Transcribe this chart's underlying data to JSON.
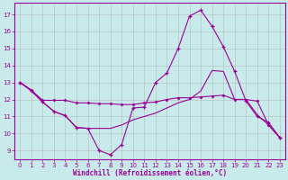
{
  "xlabel": "Windchill (Refroidissement éolien,°C)",
  "bg_color": "#c8eaea",
  "line_color": "#990099",
  "grid_color": "#b0b0b0",
  "xlim": [
    -0.5,
    23.5
  ],
  "ylim": [
    8.5,
    17.7
  ],
  "yticks": [
    9,
    10,
    11,
    12,
    13,
    14,
    15,
    16,
    17
  ],
  "xticks": [
    0,
    1,
    2,
    3,
    4,
    5,
    6,
    7,
    8,
    9,
    10,
    11,
    12,
    13,
    14,
    15,
    16,
    17,
    18,
    19,
    20,
    21,
    22,
    23
  ],
  "line1_x": [
    0,
    1,
    2,
    3,
    4,
    5,
    6,
    7,
    8,
    9,
    10,
    11,
    12,
    13,
    14,
    15,
    16,
    17,
    18,
    19,
    20,
    21,
    22,
    23
  ],
  "line1_y": [
    13.0,
    12.5,
    11.85,
    11.3,
    11.05,
    10.35,
    10.3,
    9.0,
    8.75,
    9.35,
    11.5,
    11.55,
    13.0,
    13.55,
    15.0,
    16.9,
    17.25,
    16.3,
    15.1,
    13.65,
    11.9,
    11.0,
    10.65,
    9.75
  ],
  "line2_x": [
    0,
    1,
    2,
    3,
    4,
    5,
    6,
    7,
    8,
    9,
    10,
    11,
    12,
    13,
    14,
    15,
    16,
    17,
    18,
    19,
    20,
    21,
    22,
    23
  ],
  "line2_y": [
    13.0,
    12.55,
    11.95,
    11.95,
    11.95,
    11.8,
    11.8,
    11.75,
    11.75,
    11.7,
    11.7,
    11.8,
    11.85,
    12.0,
    12.1,
    12.1,
    12.15,
    12.2,
    12.25,
    12.0,
    12.0,
    11.9,
    10.5,
    9.75
  ],
  "line3_x": [
    0,
    1,
    2,
    3,
    4,
    5,
    6,
    7,
    8,
    9,
    10,
    11,
    12,
    13,
    14,
    15,
    16,
    17,
    18,
    19,
    20,
    21,
    22,
    23
  ],
  "line3_y": [
    13.0,
    12.55,
    11.85,
    11.3,
    11.05,
    10.35,
    10.3,
    10.3,
    10.3,
    10.5,
    10.8,
    11.0,
    11.2,
    11.5,
    11.8,
    12.0,
    12.5,
    13.7,
    13.65,
    12.0,
    12.0,
    11.1,
    10.5,
    9.75
  ]
}
